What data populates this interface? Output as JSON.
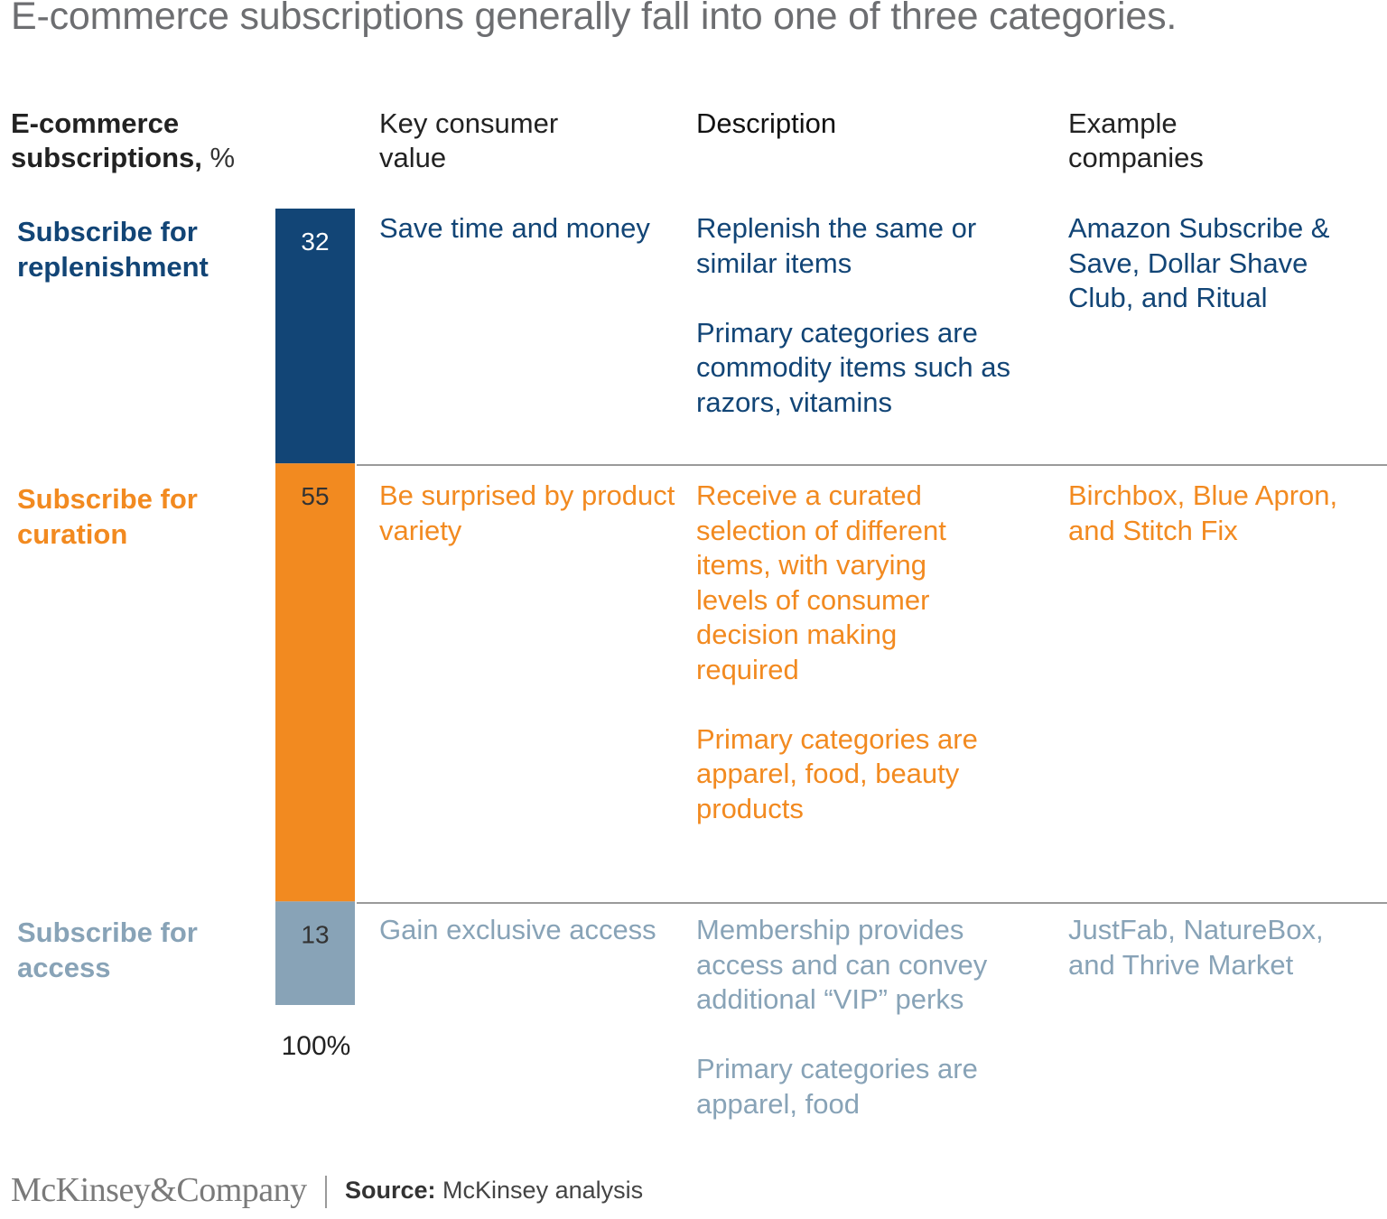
{
  "title": "E-commerce subscriptions generally fall into one of three categories.",
  "headers": {
    "bar_col_bold": "E-commerce subscriptions,",
    "bar_col_unit": "%",
    "value": "Key consumer value",
    "description": "Description",
    "examples": "Example companies"
  },
  "chart_data": {
    "type": "bar",
    "orientation": "stacked-vertical",
    "categories": [
      "Subscribe for replenishment",
      "Subscribe for curation",
      "Subscribe for access"
    ],
    "values": [
      32,
      55,
      13
    ],
    "total_label": "100%",
    "colors": [
      "#124576",
      "#f28a20",
      "#88a3b7"
    ]
  },
  "rows": [
    {
      "category": "Subscribe for replenishment",
      "value": "32",
      "color": "#124576",
      "bar_text_color": "#ffffff",
      "consumer_value": "Save time and money",
      "description": [
        "Replenish the same or similar items",
        "Primary categories are commodity items such as razors, vitamins"
      ],
      "examples": "Amazon Subscribe & Save, Dollar Shave Club, and Ritual"
    },
    {
      "category": "Subscribe for curation",
      "value": "55",
      "color": "#f28a20",
      "bar_text_color": "#333333",
      "consumer_value": "Be surprised by product variety",
      "description": [
        "Receive a curated selection of different items, with varying levels of consumer decision making required",
        "Primary categories are apparel, food, beauty products"
      ],
      "examples": "Birchbox, Blue Apron, and Stitch Fix"
    },
    {
      "category": "Subscribe for access",
      "value": "13",
      "color": "#88a3b7",
      "bar_text_color": "#333333",
      "consumer_value": "Gain exclusive access",
      "description": [
        "Membership provides access and can convey additional “VIP” perks",
        "Primary categories are apparel, food"
      ],
      "examples": "JustFab, NatureBox, and Thrive Market"
    }
  ],
  "footer": {
    "logo": "McKinsey&Company",
    "source_label": "Source:",
    "source_text": "McKinsey analysis"
  }
}
